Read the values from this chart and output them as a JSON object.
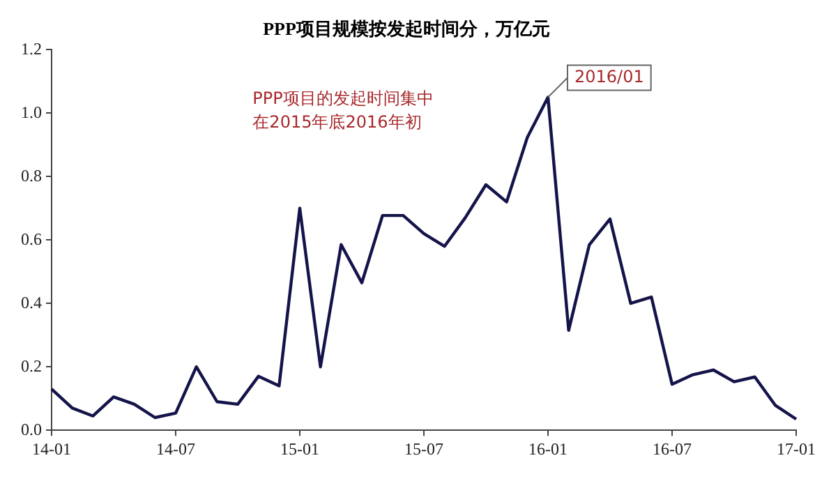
{
  "chart_data": {
    "type": "line",
    "title": "PPP项目规模按发起时间分，万亿元",
    "categories": [
      "14-01",
      null,
      null,
      null,
      null,
      null,
      "14-07",
      null,
      null,
      null,
      null,
      null,
      "15-01",
      null,
      null,
      null,
      null,
      null,
      "15-07",
      null,
      null,
      null,
      null,
      null,
      "16-01",
      null,
      null,
      null,
      null,
      null,
      "16-07",
      null,
      null,
      null,
      null,
      null,
      "17-01"
    ],
    "series": [
      {
        "color": "#14144a",
        "values": [
          0.13,
          0.07,
          0.045,
          0.105,
          0.082,
          0.04,
          0.054,
          0.2,
          0.09,
          0.082,
          0.17,
          0.14,
          0.7,
          0.2,
          0.585,
          0.465,
          0.677,
          0.677,
          0.62,
          0.58,
          0.67,
          0.774,
          0.72,
          0.923,
          1.05,
          0.315,
          0.585,
          0.666,
          0.4,
          0.42,
          0.145,
          0.175,
          0.19,
          0.153,
          0.168,
          0.078,
          0.035
        ]
      }
    ],
    "ylim": [
      0,
      1.2
    ],
    "yticks": [
      {
        "value": 0,
        "label": "0.0"
      },
      0.2,
      0.4,
      0.6,
      0.8,
      {
        "value": 1,
        "label": "1.0"
      },
      {
        "value": 1.2,
        "label": "1.2"
      }
    ],
    "marker": "none",
    "line_style": "solid",
    "legend": false,
    "annotations": [
      "PPP项目的发起时间集中",
      "在2015年底2016年初",
      {
        "text": "2016/01",
        "x": "16-01",
        "y": 1.05
      }
    ]
  }
}
